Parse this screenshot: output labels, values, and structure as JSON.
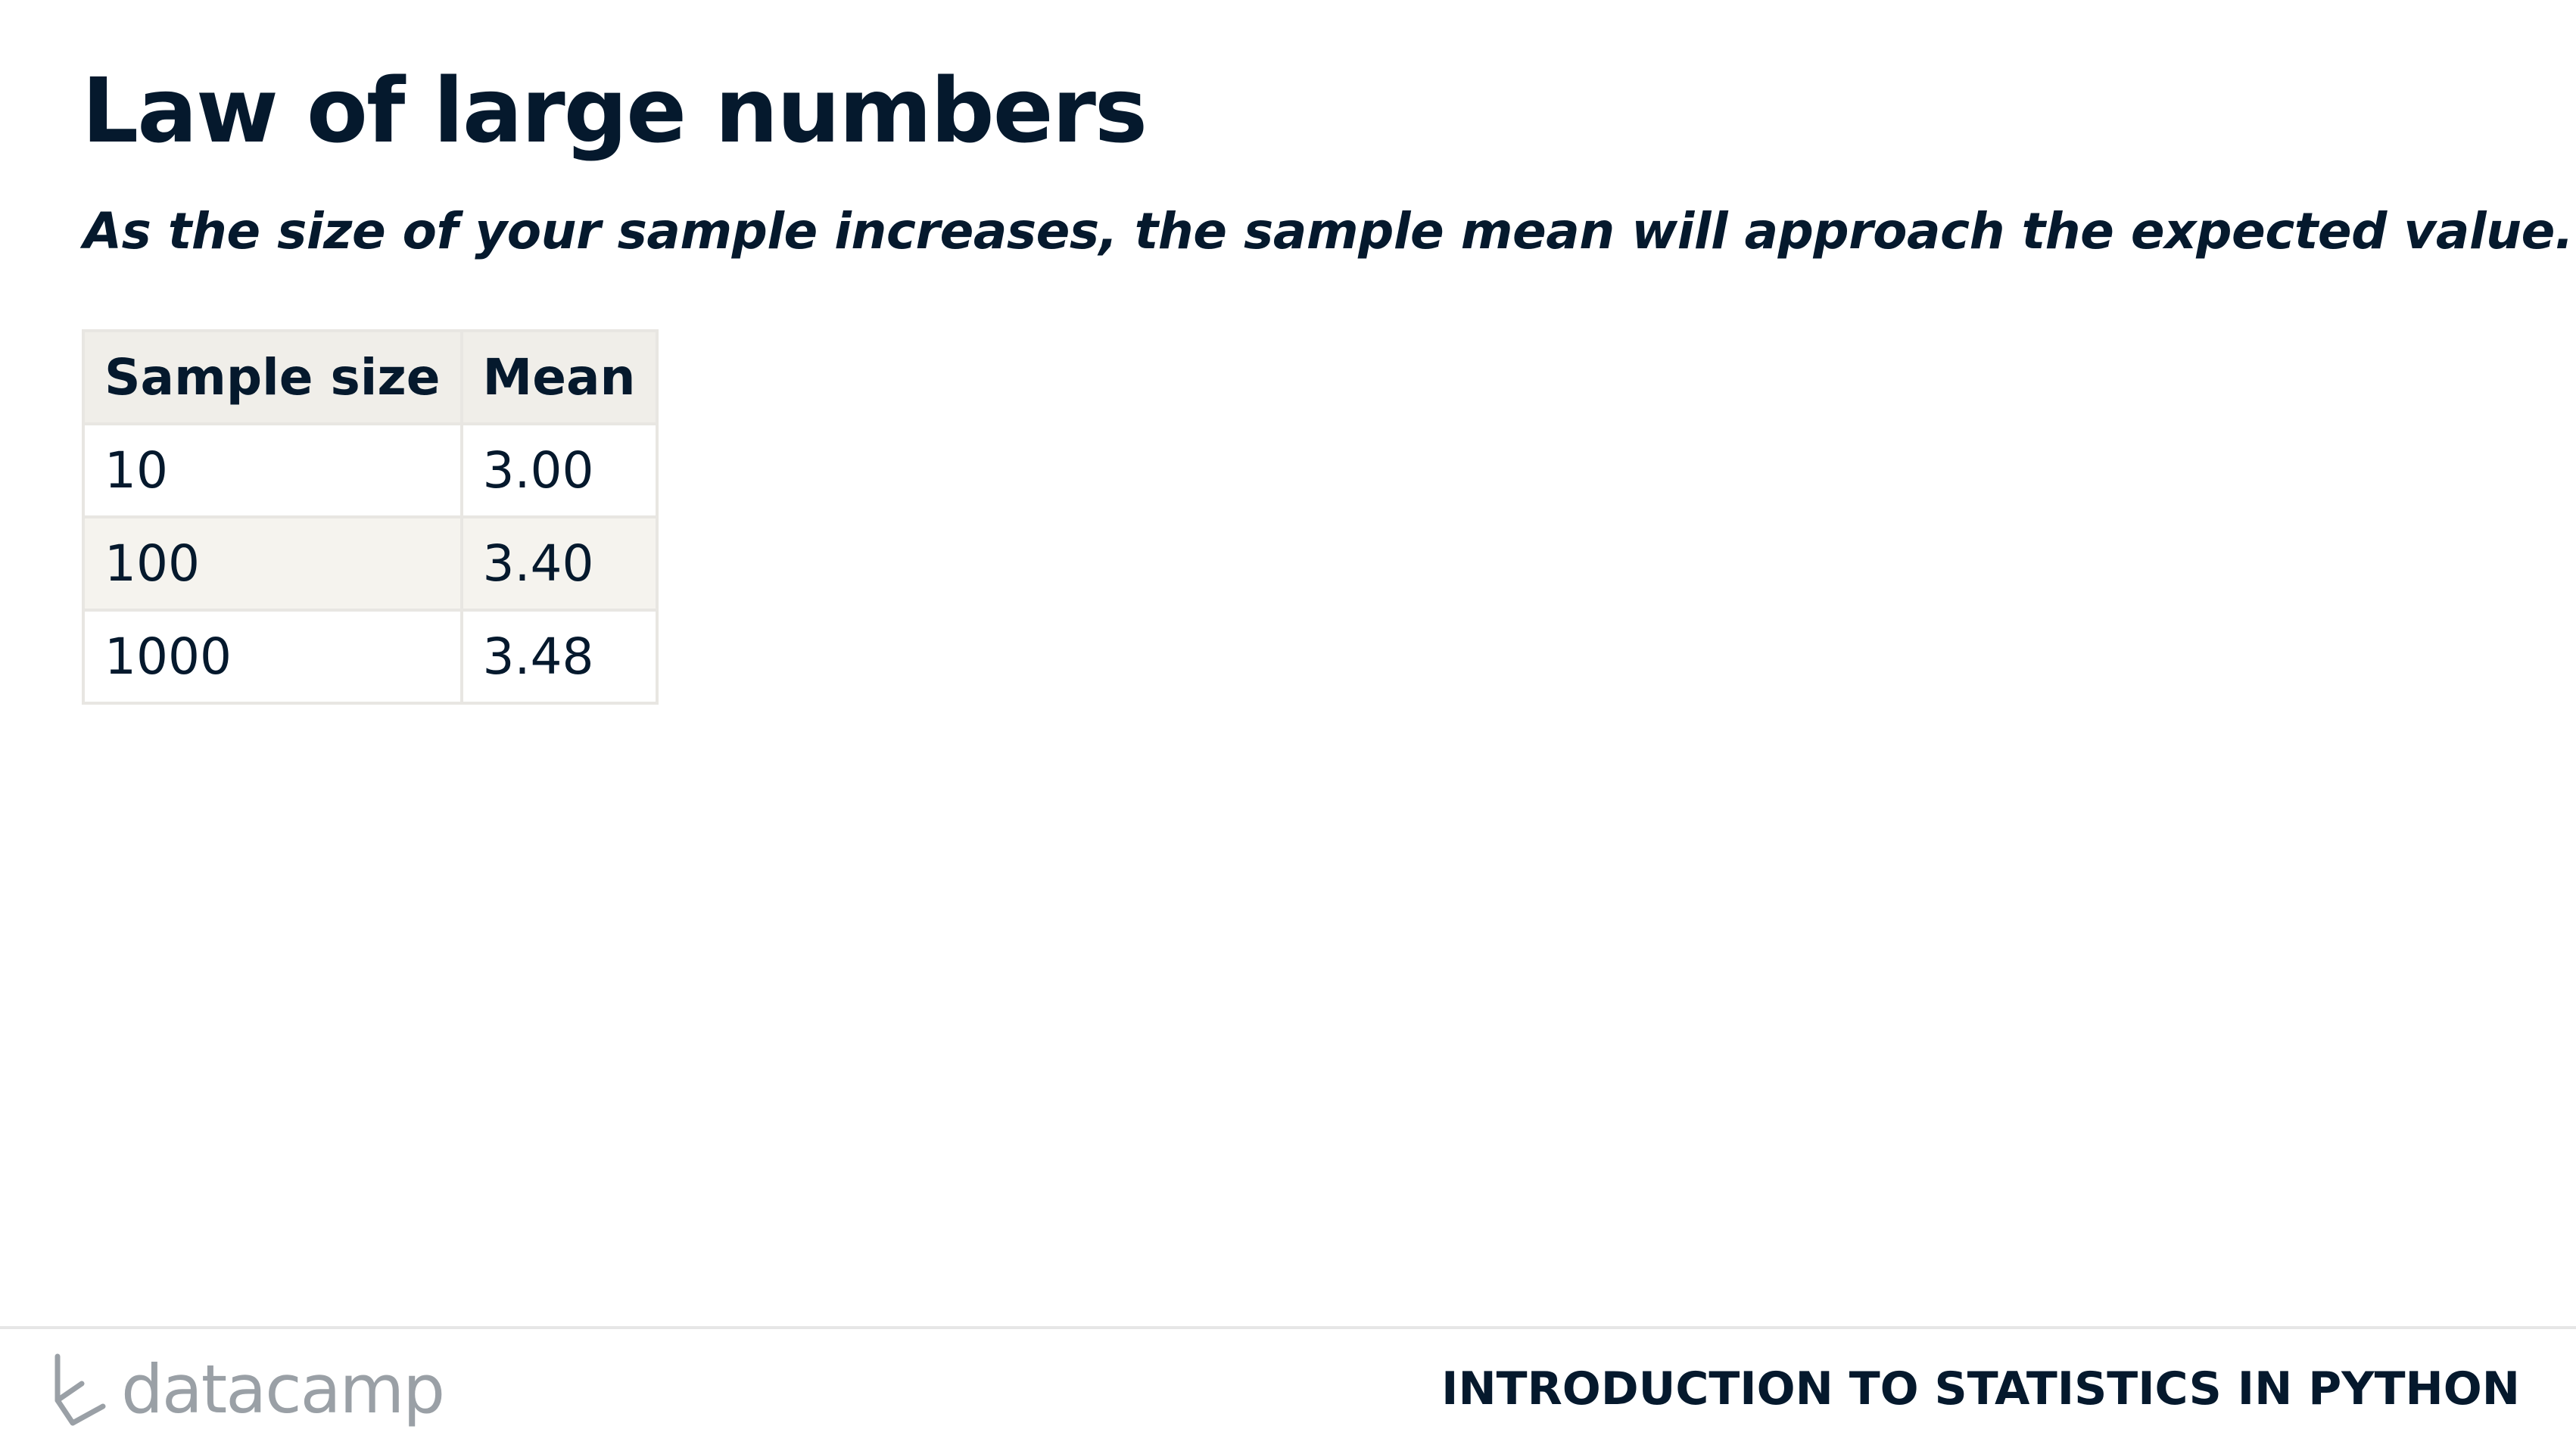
{
  "slide": {
    "title": "Law of large numbers",
    "subtitle": "As the size of your sample increases, the sample mean will approach the expected value."
  },
  "table": {
    "headers": [
      "Sample size",
      "Mean"
    ],
    "rows": [
      [
        "10",
        "3.00"
      ],
      [
        "100",
        "3.40"
      ],
      [
        "1000",
        "3.48"
      ]
    ]
  },
  "footer": {
    "logo_text": "datacamp",
    "logo_icon": "datacamp-logo-icon",
    "course_title": "INTRODUCTION TO STATISTICS IN PYTHON"
  },
  "colors": {
    "text": "#05192d",
    "header_bg": "#f0eee9",
    "alt_row_bg": "#f5f3ee",
    "border": "#e8e6e2",
    "logo": "#9aa0a6"
  }
}
